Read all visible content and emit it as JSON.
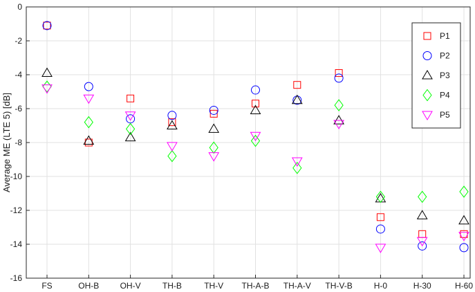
{
  "chart_data": {
    "type": "scatter",
    "title": "",
    "xlabel": "",
    "ylabel": "Average ME (LTE 5) [dB]",
    "categories": [
      "FS",
      "OH-B",
      "OH-V",
      "TH-B",
      "TH-V",
      "TH-A-B",
      "TH-A-V",
      "TH-V-B",
      "H-0",
      "H-30",
      "H-60"
    ],
    "ylim": [
      -16,
      0
    ],
    "yticks": [
      0,
      -2,
      -4,
      -6,
      -8,
      -10,
      -12,
      -14,
      -16
    ],
    "grid": true,
    "legend_position": "top-right",
    "series": [
      {
        "name": "P1",
        "marker": "square",
        "color": "#ff0000",
        "values": [
          -1.1,
          -8.0,
          -5.4,
          -6.8,
          -6.3,
          -5.7,
          -4.6,
          -3.9,
          -12.4,
          -13.4,
          -13.4
        ]
      },
      {
        "name": "P2",
        "marker": "circle",
        "color": "#0000ff",
        "values": [
          -1.1,
          -4.7,
          -6.6,
          -6.4,
          -6.1,
          -4.9,
          -5.5,
          -4.2,
          -13.1,
          -14.1,
          -14.2
        ]
      },
      {
        "name": "P3",
        "marker": "triangle-up",
        "color": "#000000",
        "values": [
          -3.9,
          -7.9,
          -7.7,
          -7.0,
          -7.2,
          -6.1,
          -5.5,
          -6.7,
          -11.3,
          -12.3,
          -12.6
        ]
      },
      {
        "name": "P4",
        "marker": "diamond",
        "color": "#00ff00",
        "values": [
          -4.7,
          -6.8,
          -7.2,
          -8.8,
          -8.3,
          -7.9,
          -9.5,
          -5.8,
          -11.2,
          -11.2,
          -10.9
        ]
      },
      {
        "name": "P5",
        "marker": "triangle-down",
        "color": "#ff00ff",
        "values": [
          -4.8,
          -5.4,
          -6.4,
          -8.2,
          -8.8,
          -7.6,
          -9.1,
          -6.9,
          -14.2,
          -13.8,
          -13.5
        ]
      }
    ]
  }
}
